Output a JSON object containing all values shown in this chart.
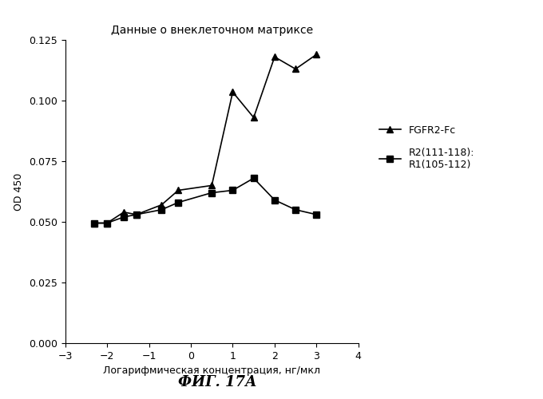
{
  "title": "Данные о внеклеточном матриксе",
  "xlabel": "Логарифмическая концентрация, нг/мкл",
  "ylabel": "OD 450",
  "xlim": [
    -3,
    4
  ],
  "ylim": [
    0.0,
    0.125
  ],
  "xticks": [
    -3,
    -2,
    -1,
    0,
    1,
    2,
    3,
    4
  ],
  "yticks": [
    0.0,
    0.025,
    0.05,
    0.075,
    0.1,
    0.125
  ],
  "caption": "ФИГ. 17А",
  "series": [
    {
      "label": "FGFR2-Fc",
      "x": [
        -2.3,
        -2.0,
        -1.6,
        -1.3,
        -0.7,
        -0.3,
        0.5,
        1.0,
        1.5,
        2.0,
        2.5,
        3.0
      ],
      "y": [
        0.0495,
        0.0495,
        0.054,
        0.053,
        0.057,
        0.063,
        0.065,
        0.1035,
        0.093,
        0.118,
        0.113,
        0.119
      ],
      "marker": "^",
      "color": "#000000",
      "markersize": 6,
      "linewidth": 1.2
    },
    {
      "label": "R2(111-118):\nR1(105-112)",
      "x": [
        -2.3,
        -2.0,
        -1.6,
        -1.3,
        -0.7,
        -0.3,
        0.5,
        1.0,
        1.5,
        2.0,
        2.5,
        3.0
      ],
      "y": [
        0.0495,
        0.0495,
        0.052,
        0.053,
        0.055,
        0.058,
        0.062,
        0.063,
        0.068,
        0.059,
        0.055,
        0.053
      ],
      "marker": "s",
      "color": "#000000",
      "markersize": 6,
      "linewidth": 1.2
    }
  ],
  "background_color": "#ffffff",
  "title_fontsize": 10,
  "axis_label_fontsize": 9,
  "tick_fontsize": 9,
  "legend_fontsize": 9,
  "caption_fontsize": 13
}
